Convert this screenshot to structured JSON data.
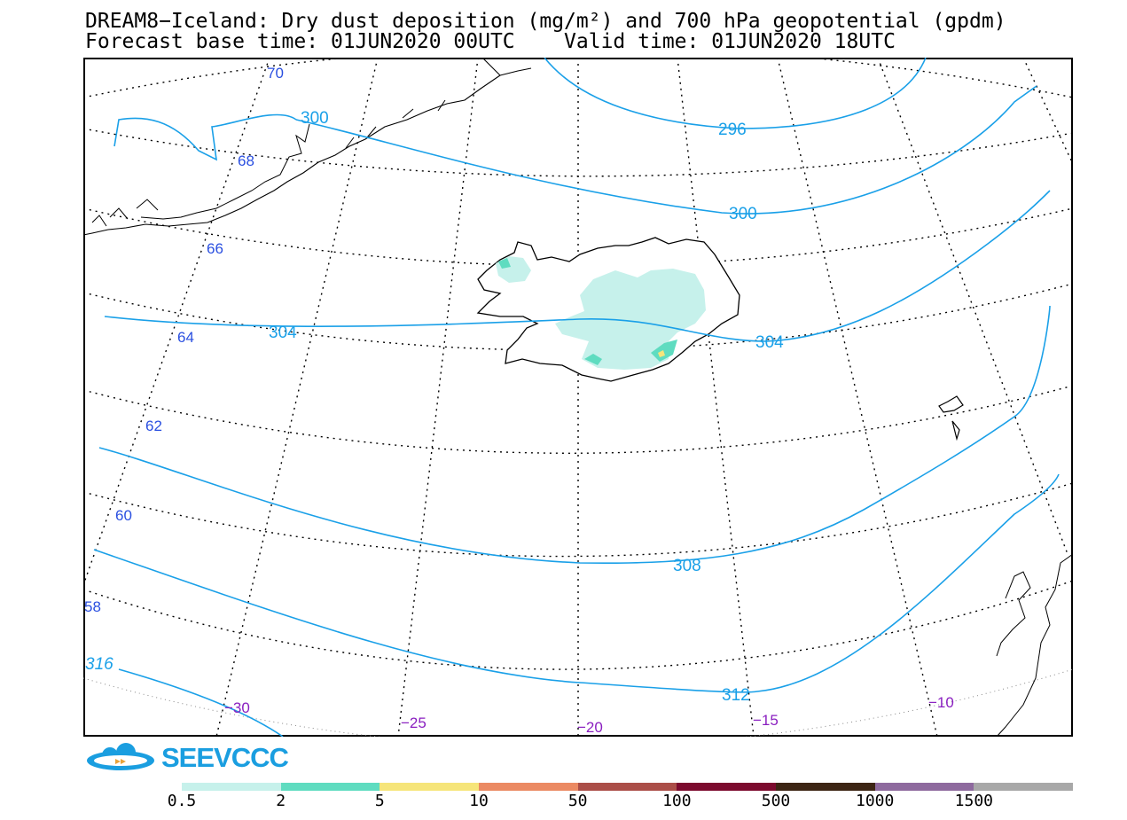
{
  "header": {
    "title_line1": "DREAM8−Iceland: Dry dust deposition (mg/m²) and 700 hPa geopotential (gpdm)",
    "title_line2": "Forecast base time: 01JUN2020 00UTC    Valid time: 01JUN2020 18UTC"
  },
  "map": {
    "geopotential_labels": [
      "296",
      "300",
      "300",
      "304",
      "304",
      "308",
      "312",
      "316"
    ],
    "latitude_labels": [
      "70",
      "68",
      "66",
      "64",
      "62",
      "60",
      "58"
    ],
    "longitude_labels": [
      "−30",
      "−25",
      "−20",
      "−15",
      "−10"
    ],
    "colors": {
      "contour": "#1aa0e8",
      "latitude_label": "#2a4fe0",
      "longitude_label": "#8a1fc0",
      "coastline": "#000000",
      "graticule": "#000000"
    }
  },
  "logo": {
    "text": "SEEVCCC"
  },
  "colorbar": {
    "labels": [
      "0.5",
      "2",
      "5",
      "10",
      "50",
      "100",
      "500",
      "1000",
      "1500"
    ],
    "colors": [
      "#c6f1eb",
      "#5fdcc0",
      "#f6e57a",
      "#eb8a63",
      "#ab4e48",
      "#7c0a2e",
      "#3d2514",
      "#8e6a9e",
      "#a8a8a8"
    ]
  }
}
